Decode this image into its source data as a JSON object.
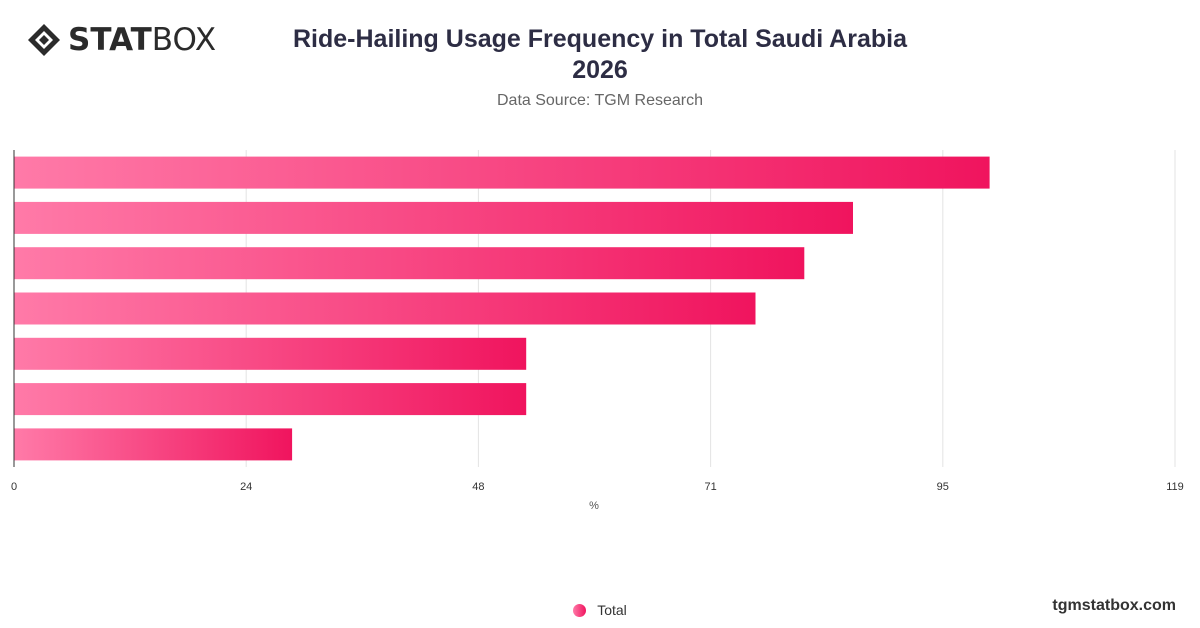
{
  "logo": {
    "bold": "STAT",
    "light": "BOX",
    "icon": "diamond-logo-icon"
  },
  "footer": {
    "site": "tgmstatbox.com"
  },
  "chart_data": {
    "type": "bar",
    "orientation": "horizontal",
    "title": "Ride-Hailing Usage Frequency in Total Saudi Arabia 2026",
    "title_lines": [
      "Ride-Hailing Usage Frequency in Total Saudi Arabia",
      "2026"
    ],
    "subtitle": "Data Source: TGM Research",
    "xlabel": "%",
    "ylabel": "",
    "xlim": [
      0,
      119
    ],
    "xticks": [
      "0",
      "24",
      "48",
      "71",
      "95",
      "119"
    ],
    "xtick_values": [
      0,
      23.8,
      47.6,
      71.4,
      95.2,
      119
    ],
    "categories": [
      "",
      "",
      "",
      "",
      "",
      "",
      ""
    ],
    "series": [
      {
        "name": "Total",
        "values": [
          100,
          86,
          81,
          76,
          52.5,
          52.5,
          28.5
        ]
      }
    ],
    "colors": {
      "bar_start": "#ff7aa8",
      "bar_end": "#f0145e",
      "grid": "#e3e3e3",
      "axis": "#333333"
    },
    "grid": true,
    "legend": "bottom-center"
  }
}
